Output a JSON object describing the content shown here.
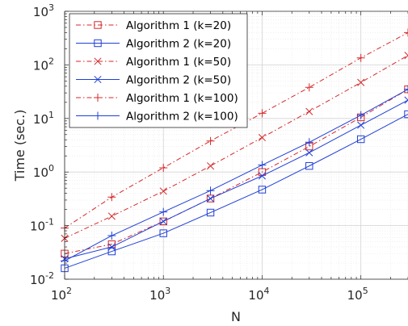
{
  "chart_data": {
    "type": "line",
    "xscale": "log",
    "yscale": "log",
    "xlabel": "N",
    "ylabel": "Time (sec.)",
    "xlim": [
      100,
      300000
    ],
    "ylim": [
      0.01,
      1000
    ],
    "x_tick_labels": [
      {
        "base": "10",
        "exp": "2"
      },
      {
        "base": "10",
        "exp": "3"
      },
      {
        "base": "10",
        "exp": "4"
      },
      {
        "base": "10",
        "exp": "5"
      }
    ],
    "y_tick_labels": [
      {
        "base": "10",
        "exp": "-2"
      },
      {
        "base": "10",
        "exp": "-1"
      },
      {
        "base": "10",
        "exp": "0"
      },
      {
        "base": "10",
        "exp": "1"
      },
      {
        "base": "10",
        "exp": "2"
      },
      {
        "base": "10",
        "exp": "3"
      }
    ],
    "grid": true,
    "legend_position": "top-left",
    "x": [
      100,
      300,
      1000,
      3000,
      10000,
      30000,
      100000,
      300000
    ],
    "series": [
      {
        "name": "Algorithm 1 (k=20)",
        "color": "#d62728",
        "dash": "dashdot",
        "marker": "square",
        "values": [
          0.03,
          0.045,
          0.12,
          0.32,
          1.0,
          3.0,
          10.5,
          35
        ]
      },
      {
        "name": "Algorithm 2 (k=20)",
        "color": "#1f3fd6",
        "dash": "solid",
        "marker": "square",
        "values": [
          0.016,
          0.033,
          0.072,
          0.175,
          0.47,
          1.3,
          4.1,
          12
        ]
      },
      {
        "name": "Algorithm 1 (k=50)",
        "color": "#d62728",
        "dash": "dashdot",
        "marker": "x",
        "values": [
          0.058,
          0.15,
          0.44,
          1.3,
          4.4,
          13.5,
          47,
          150
        ]
      },
      {
        "name": "Algorithm 2 (k=50)",
        "color": "#1f3fd6",
        "dash": "solid",
        "marker": "x",
        "values": [
          0.024,
          0.04,
          0.12,
          0.32,
          0.85,
          2.3,
          7.5,
          22
        ]
      },
      {
        "name": "Algorithm 1 (k=100)",
        "color": "#d62728",
        "dash": "dashdot",
        "marker": "plus",
        "values": [
          0.09,
          0.34,
          1.2,
          3.8,
          12.5,
          38,
          135,
          400
        ]
      },
      {
        "name": "Algorithm 2 (k=100)",
        "color": "#1f3fd6",
        "dash": "solid",
        "marker": "plus",
        "values": [
          0.022,
          0.065,
          0.18,
          0.45,
          1.35,
          3.6,
          11.5,
          35
        ]
      }
    ]
  }
}
